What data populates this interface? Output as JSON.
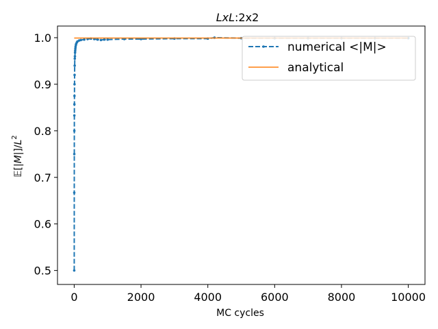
{
  "chart_data": {
    "type": "line",
    "title": "LxL:2x2",
    "title_parts": {
      "italic": "LxL",
      "rest": ":2x2"
    },
    "xlabel": "MC cycles",
    "ylabel": "𝔼[|M|]/L²",
    "ylabel_parts": {
      "prefix": "𝔼[|",
      "var": "M",
      "mid": "|]/",
      "var2": "L",
      "sup": "2"
    },
    "xlim": [
      -500,
      10500
    ],
    "ylim": [
      0.47,
      1.025
    ],
    "xticks": [
      0,
      2000,
      4000,
      6000,
      8000,
      10000
    ],
    "yticks": [
      0.5,
      0.6,
      0.7,
      0.8,
      0.9,
      1.0
    ],
    "xtick_labels": [
      "0",
      "2000",
      "4000",
      "6000",
      "8000",
      "10000"
    ],
    "ytick_labels": [
      "0.5",
      "0.6",
      "0.7",
      "0.8",
      "0.9",
      "1.0"
    ],
    "legend_position": "upper-right",
    "series": [
      {
        "name": "numerical <|M|>",
        "style": "dashed-with-dots",
        "color": "#1f77b4",
        "x": [
          1,
          2,
          3,
          4,
          5,
          6,
          8,
          10,
          12,
          15,
          18,
          22,
          26,
          30,
          35,
          40,
          50,
          60,
          80,
          100,
          150,
          200,
          300,
          400,
          500,
          600,
          700,
          800,
          900,
          1000,
          1500,
          2000,
          3000,
          4000,
          4200,
          5000,
          6000,
          7000,
          8000,
          9000,
          10000
        ],
        "y": [
          0.5,
          0.667,
          0.75,
          0.8,
          0.833,
          0.857,
          0.875,
          0.9,
          0.92,
          0.94,
          0.955,
          0.96,
          0.968,
          0.972,
          0.976,
          0.98,
          0.984,
          0.987,
          0.99,
          0.992,
          0.994,
          0.995,
          0.996,
          0.997,
          0.998,
          0.997,
          0.996,
          0.995,
          0.996,
          0.996,
          0.997,
          0.997,
          0.998,
          0.998,
          1.0,
          0.999,
          0.999,
          0.999,
          0.999,
          0.999,
          0.999
        ]
      },
      {
        "name": "analytical",
        "style": "solid",
        "color": "#ff7f0e",
        "x": [
          0,
          10000
        ],
        "y": [
          0.9993,
          0.9993
        ]
      }
    ]
  }
}
